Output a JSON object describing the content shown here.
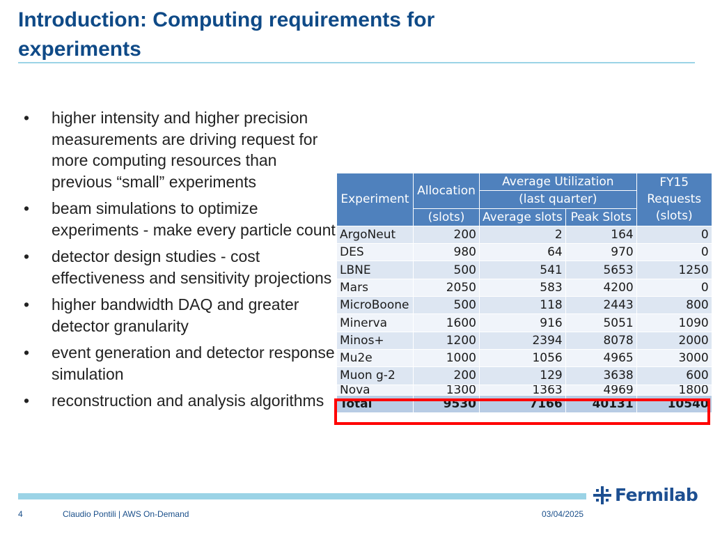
{
  "slide": {
    "title_line1": "Introduction: Computing requirements for",
    "title_line2": "experiments",
    "bullet_symbol": "•"
  },
  "bullets": [
    "higher intensity and higher precision measurements are driving request for more computing resources than previous “small” experiments",
    "beam simulations to optimize experiments - make every particle count",
    "detector design studies - cost effectiveness and sensitivity projections",
    "higher bandwidth DAQ and greater detector granularity",
    "event generation and detector response simulation",
    "reconstruction and analysis algorithms"
  ],
  "table": {
    "headers": {
      "experiment": "Experiment",
      "allocation_line1": "Allocation",
      "allocation_line2": "(slots)",
      "utilization_line1": "Average  Utilization",
      "utilization_line2": "(last  quarter)",
      "average_slots": "Average slots",
      "peak_slots": "Peak Slots",
      "fy15_line1": "FY15",
      "fy15_line2": "Requests",
      "fy15_line3": "(slots)"
    },
    "rows": [
      {
        "experiment": "ArgoNeut",
        "allocation": "200",
        "average": "2",
        "peak": "164",
        "fy15": "0"
      },
      {
        "experiment": "DES",
        "allocation": "980",
        "average": "64",
        "peak": "970",
        "fy15": "0"
      },
      {
        "experiment": "LBNE",
        "allocation": "500",
        "average": "541",
        "peak": "5653",
        "fy15": "1250"
      },
      {
        "experiment": "Mars",
        "allocation": "2050",
        "average": "583",
        "peak": "4200",
        "fy15": "0"
      },
      {
        "experiment": "MicroBoone",
        "allocation": "500",
        "average": "118",
        "peak": "2443",
        "fy15": "800"
      },
      {
        "experiment": "Minerva",
        "allocation": "1600",
        "average": "916",
        "peak": "5051",
        "fy15": "1090"
      },
      {
        "experiment": "Minos+",
        "allocation": "1200",
        "average": "2394",
        "peak": "8078",
        "fy15": "2000"
      },
      {
        "experiment": "Mu2e",
        "allocation": "1000",
        "average": "1056",
        "peak": "4965",
        "fy15": "3000"
      },
      {
        "experiment": "Muon g-2",
        "allocation": "200",
        "average": "129",
        "peak": "3638",
        "fy15": "600"
      },
      {
        "experiment": "Nova",
        "allocation": "1300",
        "average": "1363",
        "peak": "4969",
        "fy15": "1800"
      }
    ],
    "total": {
      "experiment": "Total",
      "allocation": "9530",
      "average": "7166",
      "peak": "40131",
      "fy15": "10540"
    },
    "highlight_color": "#ff0000",
    "header_color": "#4f81bd"
  },
  "footer": {
    "page_number": "4",
    "author": "Claudio Pontili | AWS On-Demand",
    "date": "03/04/2025",
    "logo_text": "Fermilab"
  }
}
